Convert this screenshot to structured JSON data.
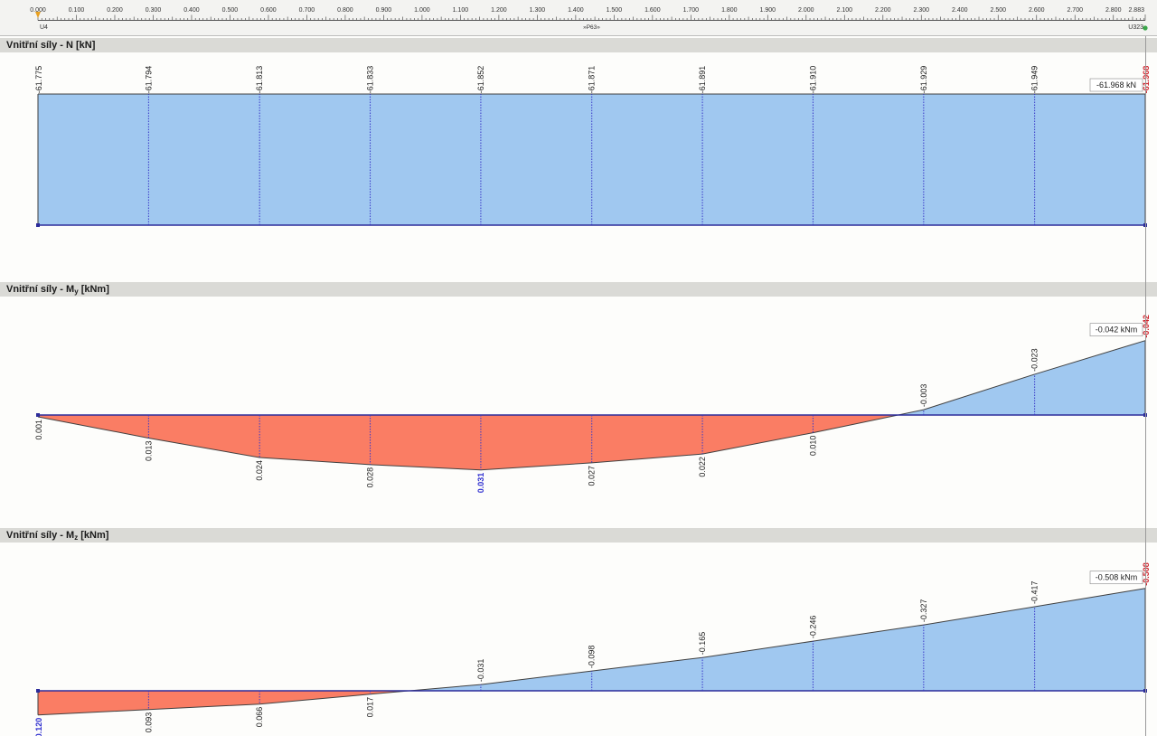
{
  "ruler": {
    "ticks": [
      "0.000",
      "0.100",
      "0.200",
      "0.300",
      "0.400",
      "0.500",
      "0.600",
      "0.700",
      "0.800",
      "0.900",
      "1.000",
      "1.100",
      "1.200",
      "1.300",
      "1.400",
      "1.500",
      "1.600",
      "1.700",
      "1.800",
      "1.900",
      "2.000",
      "2.100",
      "2.200",
      "2.300",
      "2.400",
      "2.500",
      "2.600",
      "2.700",
      "2.800",
      "2.883"
    ],
    "start_node": "U4",
    "end_node": "U323",
    "member_label": "»P63»"
  },
  "headers": {
    "n": "Vnitřní síly - N [kN]",
    "my_prefix": "Vnitřní síly - M",
    "my_sub": "y",
    "my_suffix": " [kNm]",
    "mz_prefix": "Vnitřní síly - M",
    "mz_sub": "z",
    "mz_suffix": " [kNm]"
  },
  "chart_data": [
    {
      "type": "area",
      "title": "Vnitřní síly - N [kN]",
      "xlabel": "",
      "ylabel": "N [kN]",
      "x": [
        0,
        0.288,
        0.577,
        0.865,
        1.153,
        1.442,
        1.73,
        2.018,
        2.306,
        2.595,
        2.883
      ],
      "values": [
        -61.775,
        -61.794,
        -61.813,
        -61.833,
        -61.852,
        -61.871,
        -61.891,
        -61.91,
        -61.929,
        -61.949,
        -61.968
      ],
      "labels": [
        "-61.775",
        "-61.794",
        "-61.813",
        "-61.833",
        "-61.852",
        "-61.871",
        "-61.891",
        "-61.910",
        "-61.929",
        "-61.949",
        "-61.968"
      ],
      "end_label": "-61.968 kN",
      "extreme_index": 10,
      "positive_color": "#fa7d64",
      "negative_color": "#a0c8f0",
      "highlight_color": "#d0242d"
    },
    {
      "type": "area",
      "title": "Vnitřní síly - My [kNm]",
      "xlabel": "",
      "ylabel": "My [kNm]",
      "x": [
        0,
        0.288,
        0.577,
        0.865,
        1.153,
        1.442,
        1.73,
        2.018,
        2.306,
        2.595,
        2.883
      ],
      "values": [
        0.001,
        0.013,
        0.024,
        0.028,
        0.031,
        0.027,
        0.022,
        0.01,
        -0.003,
        -0.023,
        -0.042
      ],
      "labels": [
        "0.001",
        "0.013",
        "0.024",
        "0.028",
        "0.031",
        "0.027",
        "0.022",
        "0.010",
        "-0.003",
        "-0.023",
        "-0.042"
      ],
      "end_label": "-0.042 kNm",
      "extreme_index": 10,
      "highlight_index": 4,
      "positive_color": "#fa7d64",
      "negative_color": "#a0c8f0",
      "highlight_color": "#d0242d",
      "highlight2_color": "#3030d0"
    },
    {
      "type": "area",
      "title": "Vnitřní síly - Mz [kNm]",
      "xlabel": "",
      "ylabel": "Mz [kNm]",
      "x": [
        0,
        0.288,
        0.577,
        0.865,
        1.153,
        1.442,
        1.73,
        2.018,
        2.306,
        2.595,
        2.883
      ],
      "values": [
        0.12,
        0.093,
        0.066,
        0.017,
        -0.031,
        -0.098,
        -0.165,
        -0.246,
        -0.327,
        -0.417,
        -0.508
      ],
      "labels": [
        "0.120",
        "0.093",
        "0.066",
        "0.017",
        "-0.031",
        "-0.098",
        "-0.165",
        "-0.246",
        "-0.327",
        "-0.417",
        "-0.508"
      ],
      "end_label": "-0.508 kNm",
      "extreme_index": 10,
      "highlight_index": 0,
      "positive_color": "#fa7d64",
      "negative_color": "#a0c8f0",
      "highlight_color": "#d0242d",
      "highlight2_color": "#3030d0"
    }
  ]
}
